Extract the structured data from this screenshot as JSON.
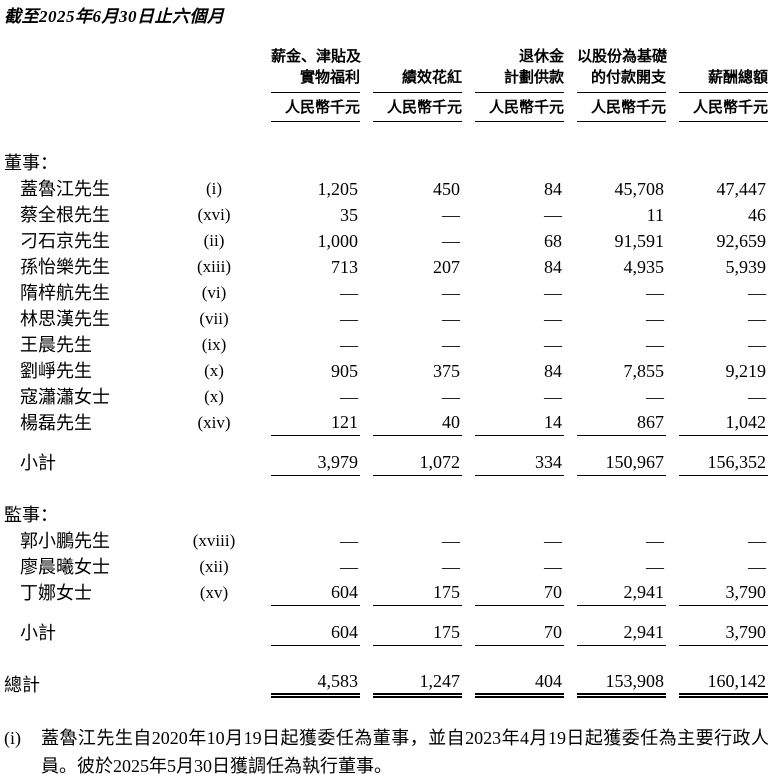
{
  "title": "截至2025年6月30日止六個月",
  "columns": [
    {
      "line1": "薪金、津貼及",
      "line2": "實物福利",
      "unit": "人民幣千元"
    },
    {
      "line1": "",
      "line2": "績效花紅",
      "unit": "人民幣千元"
    },
    {
      "line1": "退休金",
      "line2": "計劃供款",
      "unit": "人民幣千元"
    },
    {
      "line1": "以股份為基礎",
      "line2": "的付款開支",
      "unit": "人民幣千元"
    },
    {
      "line1": "",
      "line2": "薪酬總額",
      "unit": "人民幣千元"
    }
  ],
  "sections": [
    {
      "header": "董事：",
      "rows": [
        {
          "name": "蓋魯江先生",
          "note": "(i)",
          "values": [
            "1,205",
            "450",
            "84",
            "45,708",
            "47,447"
          ]
        },
        {
          "name": "蔡全根先生",
          "note": "(xvi)",
          "values": [
            "35",
            "—",
            "—",
            "11",
            "46"
          ]
        },
        {
          "name": "刁石京先生",
          "note": "(ii)",
          "values": [
            "1,000",
            "—",
            "68",
            "91,591",
            "92,659"
          ]
        },
        {
          "name": "孫怡樂先生",
          "note": "(xiii)",
          "values": [
            "713",
            "207",
            "84",
            "4,935",
            "5,939"
          ]
        },
        {
          "name": "隋梓航先生",
          "note": "(vi)",
          "values": [
            "—",
            "—",
            "—",
            "—",
            "—"
          ]
        },
        {
          "name": "林思漢先生",
          "note": "(vii)",
          "values": [
            "—",
            "—",
            "—",
            "—",
            "—"
          ]
        },
        {
          "name": "王晨先生",
          "note": "(ix)",
          "values": [
            "—",
            "—",
            "—",
            "—",
            "—"
          ]
        },
        {
          "name": "劉崢先生",
          "note": "(x)",
          "values": [
            "905",
            "375",
            "84",
            "7,855",
            "9,219"
          ]
        },
        {
          "name": "寇瀟瀟女士",
          "note": "(x)",
          "values": [
            "—",
            "—",
            "—",
            "—",
            "—"
          ]
        },
        {
          "name": "楊磊先生",
          "note": "(xiv)",
          "values": [
            "121",
            "40",
            "14",
            "867",
            "1,042"
          ]
        }
      ],
      "subtotal": {
        "label": "小計",
        "values": [
          "3,979",
          "1,072",
          "334",
          "150,967",
          "156,352"
        ]
      }
    },
    {
      "header": "監事：",
      "rows": [
        {
          "name": "郭小鵬先生",
          "note": "(xviii)",
          "values": [
            "—",
            "—",
            "—",
            "—",
            "—"
          ]
        },
        {
          "name": "廖晨曦女士",
          "note": "(xii)",
          "values": [
            "—",
            "—",
            "—",
            "—",
            "—"
          ]
        },
        {
          "name": "丁娜女士",
          "note": "(xv)",
          "values": [
            "604",
            "175",
            "70",
            "2,941",
            "3,790"
          ]
        }
      ],
      "subtotal": {
        "label": "小計",
        "values": [
          "604",
          "175",
          "70",
          "2,941",
          "3,790"
        ]
      }
    }
  ],
  "total": {
    "label": "總計",
    "values": [
      "4,583",
      "1,247",
      "404",
      "153,908",
      "160,142"
    ]
  },
  "footnote": {
    "marker": "(i)",
    "text": "蓋魯江先生自2020年10月19日起獲委任為董事，並自2023年4月19日起獲委任為主要行政人員。彼於2025年5月30日獲調任為執行董事。"
  }
}
